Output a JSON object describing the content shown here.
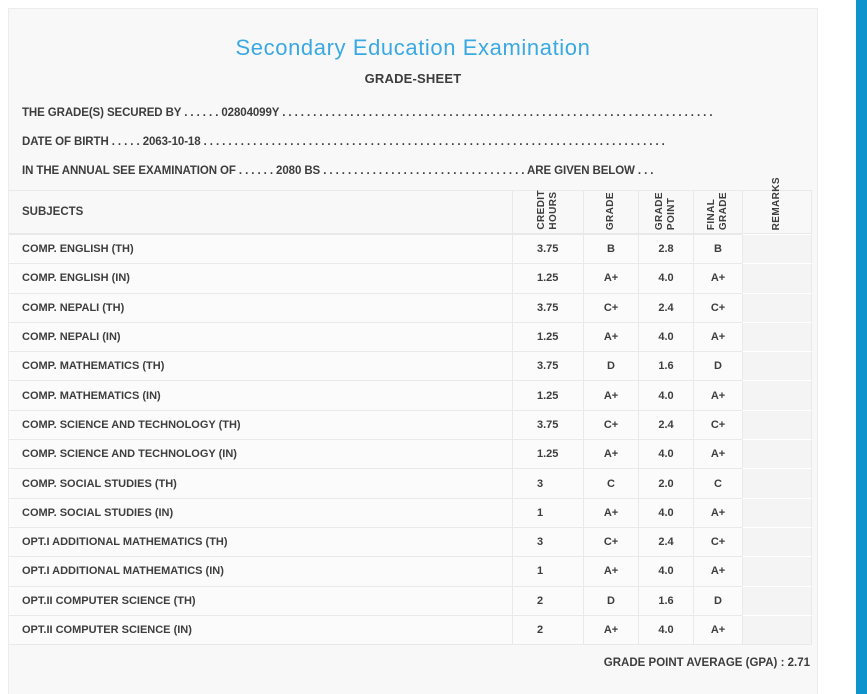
{
  "header": {
    "title": "Secondary Education Examination",
    "subtitle": "GRADE-SHEET"
  },
  "info": {
    "secured_by": "THE GRADE(S) SECURED BY . . . . . . 02804099Y . . . . . . . . . . . . . . . . . . . . . . . . . . . . . . . . . . . . . . . . . . . . . . . . . . . . . . . . . . . . . . . . . . . . . .",
    "date_of_birth": "DATE OF BIRTH . . . . . 2063-10-18 . . . . . . . . . . . . . . . . . . . . . . . . . . . . . . . . . . . . . . . . . . . . . . . . . . . . . . . . . . . . . . . . . . . . . . . . . . .",
    "examination": "IN THE ANNUAL SEE EXAMINATION OF . . . . . . 2080 BS . . . . . . . . . . . . . . . . . . . . . . . . . . . . . . . . . ARE GIVEN BELOW . . ."
  },
  "table": {
    "headers": {
      "subjects": "SUBJECTS",
      "credit_hours": "CREDIT\nHOURS",
      "grade": "GRADE",
      "grade_point": "GRADE\nPOINT",
      "final_grade": "FINAL\nGRADE",
      "remarks": "REMARKS"
    },
    "rows": [
      {
        "subject": "COMP. ENGLISH (TH)",
        "credit_hours": "3.75",
        "grade": "B",
        "grade_point": "2.8",
        "final_grade": "B",
        "remarks": ""
      },
      {
        "subject": "COMP. ENGLISH (IN)",
        "credit_hours": "1.25",
        "grade": "A+",
        "grade_point": "4.0",
        "final_grade": "A+",
        "remarks": ""
      },
      {
        "subject": "COMP. NEPALI (TH)",
        "credit_hours": "3.75",
        "grade": "C+",
        "grade_point": "2.4",
        "final_grade": "C+",
        "remarks": ""
      },
      {
        "subject": "COMP. NEPALI (IN)",
        "credit_hours": "1.25",
        "grade": "A+",
        "grade_point": "4.0",
        "final_grade": "A+",
        "remarks": ""
      },
      {
        "subject": "COMP. MATHEMATICS (TH)",
        "credit_hours": "3.75",
        "grade": "D",
        "grade_point": "1.6",
        "final_grade": "D",
        "remarks": ""
      },
      {
        "subject": "COMP. MATHEMATICS (IN)",
        "credit_hours": "1.25",
        "grade": "A+",
        "grade_point": "4.0",
        "final_grade": "A+",
        "remarks": ""
      },
      {
        "subject": "COMP. SCIENCE AND TECHNOLOGY (TH)",
        "credit_hours": "3.75",
        "grade": "C+",
        "grade_point": "2.4",
        "final_grade": "C+",
        "remarks": ""
      },
      {
        "subject": "COMP. SCIENCE AND TECHNOLOGY (IN)",
        "credit_hours": "1.25",
        "grade": "A+",
        "grade_point": "4.0",
        "final_grade": "A+",
        "remarks": ""
      },
      {
        "subject": "COMP. SOCIAL STUDIES (TH)",
        "credit_hours": "3",
        "grade": "C",
        "grade_point": "2.0",
        "final_grade": "C",
        "remarks": ""
      },
      {
        "subject": "COMP. SOCIAL STUDIES (IN)",
        "credit_hours": "1",
        "grade": "A+",
        "grade_point": "4.0",
        "final_grade": "A+",
        "remarks": ""
      },
      {
        "subject": "OPT.I ADDITIONAL MATHEMATICS (TH)",
        "credit_hours": "3",
        "grade": "C+",
        "grade_point": "2.4",
        "final_grade": "C+",
        "remarks": ""
      },
      {
        "subject": "OPT.I ADDITIONAL MATHEMATICS (IN)",
        "credit_hours": "1",
        "grade": "A+",
        "grade_point": "4.0",
        "final_grade": "A+",
        "remarks": ""
      },
      {
        "subject": "OPT.II COMPUTER SCIENCE (TH)",
        "credit_hours": "2",
        "grade": "D",
        "grade_point": "1.6",
        "final_grade": "D",
        "remarks": ""
      },
      {
        "subject": "OPT.II COMPUTER SCIENCE (IN)",
        "credit_hours": "2",
        "grade": "A+",
        "grade_point": "4.0",
        "final_grade": "A+",
        "remarks": ""
      }
    ]
  },
  "footer": {
    "gpa_label": "GRADE POINT AVERAGE (GPA) :",
    "gpa_value": "2.71"
  },
  "colors": {
    "accent_blue": "#0e93cd",
    "title_blue": "#3aa9e3",
    "text": "#3e3e3e",
    "card_background": "#f8f8f8"
  }
}
